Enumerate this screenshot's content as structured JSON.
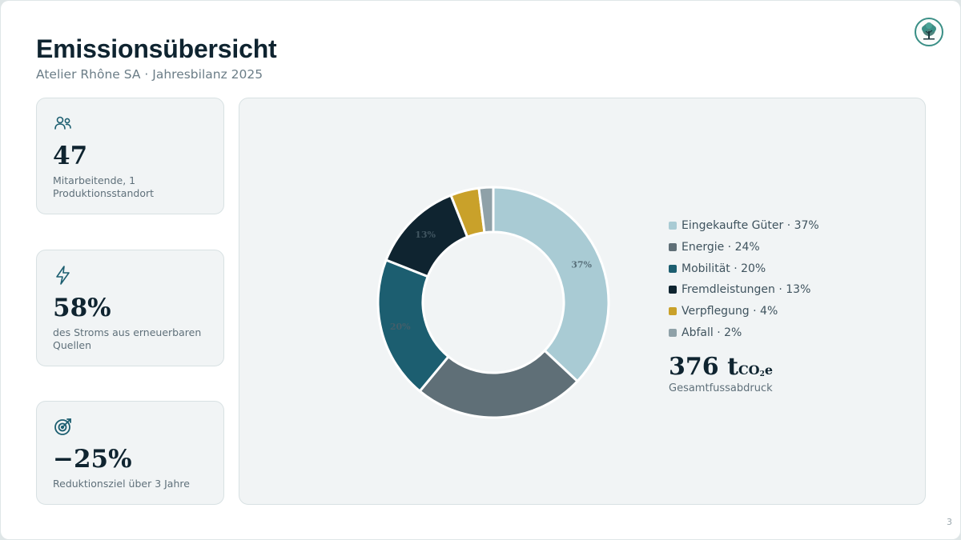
{
  "header": {
    "title": "Emissionsübersicht",
    "subtitle": "Atelier Rhône SA · Jahresbilanz 2025"
  },
  "logo": {
    "icon": "tree-icon"
  },
  "cards": [
    {
      "icon": "people-icon",
      "value": "47",
      "label": "Mitarbeitende, 1 Produktionsstandort"
    },
    {
      "icon": "lightning-icon",
      "value": "58%",
      "label": "des Stroms aus erneuerbaren Quellen"
    },
    {
      "icon": "target-icon",
      "value": "−25%",
      "label": "Reduktionsziel über 3 Jahre"
    }
  ],
  "chart_data": {
    "type": "pie",
    "donut": true,
    "categories": [
      "Eingekaufte Güter",
      "Energie",
      "Mobilität",
      "Fremdleistungen",
      "Verpflegung",
      "Abfall"
    ],
    "values": [
      37,
      24,
      20,
      13,
      4,
      2
    ],
    "colors": [
      "#a9cbd4",
      "#5f6f77",
      "#1c5e70",
      "#0f2430",
      "#c9a12a",
      "#8fa1a8"
    ],
    "data_labels": [
      "37%",
      "",
      "20%",
      "13%",
      "",
      ""
    ],
    "legend": [
      "Eingekaufte Güter · 37%",
      "Energie · 24%",
      "Mobilität · 20%",
      "Fremdleistungen · 13%",
      "Verpflegung · 4%",
      "Abfall · 2%"
    ],
    "legend_position": "right"
  },
  "total": {
    "value": "376",
    "unit_prefix": "t",
    "unit_main": "CO",
    "unit_sub": "2",
    "unit_suffix": "e",
    "label": "Gesamtfussabdruck"
  },
  "page_number": "3"
}
